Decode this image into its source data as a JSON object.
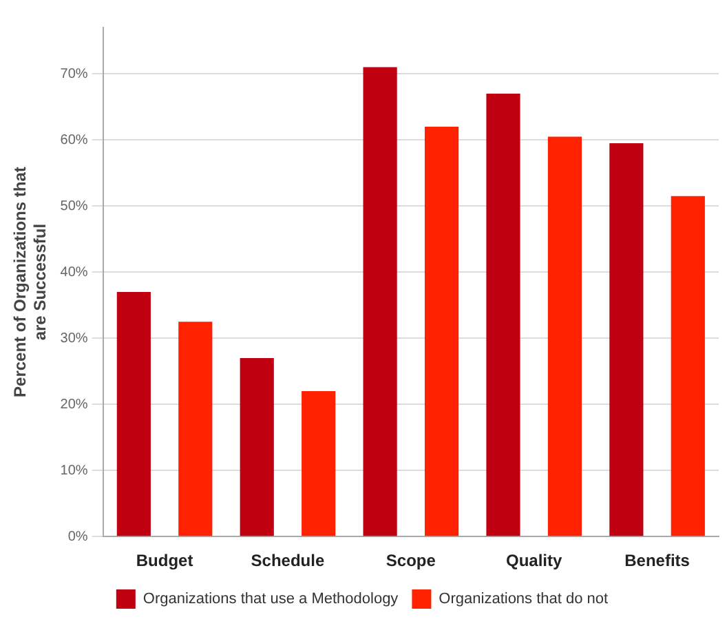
{
  "chart_data": {
    "type": "bar",
    "ylabel": "Percent of Organizations that are Successful",
    "categories": [
      "Budget",
      "Schedule",
      "Scope",
      "Quality",
      "Benefits"
    ],
    "series": [
      {
        "name": "Organizations that use a Methodology",
        "color": "#c00010",
        "values": [
          37,
          27,
          71,
          67,
          59.5
        ]
      },
      {
        "name": "Organizations that do not",
        "color": "#ff2200",
        "values": [
          32.5,
          22,
          62,
          60.5,
          51.5
        ]
      }
    ],
    "ylim": [
      0,
      77
    ],
    "yticks": [
      {
        "value": 0,
        "label": "0%"
      },
      {
        "value": 10,
        "label": "10%"
      },
      {
        "value": 20,
        "label": "20%"
      },
      {
        "value": 30,
        "label": "30%"
      },
      {
        "value": 40,
        "label": "40%"
      },
      {
        "value": 50,
        "label": "50%"
      },
      {
        "value": 60,
        "label": "60%"
      },
      {
        "value": 70,
        "label": "70%"
      }
    ],
    "grid": "y",
    "legend": "bottom"
  }
}
